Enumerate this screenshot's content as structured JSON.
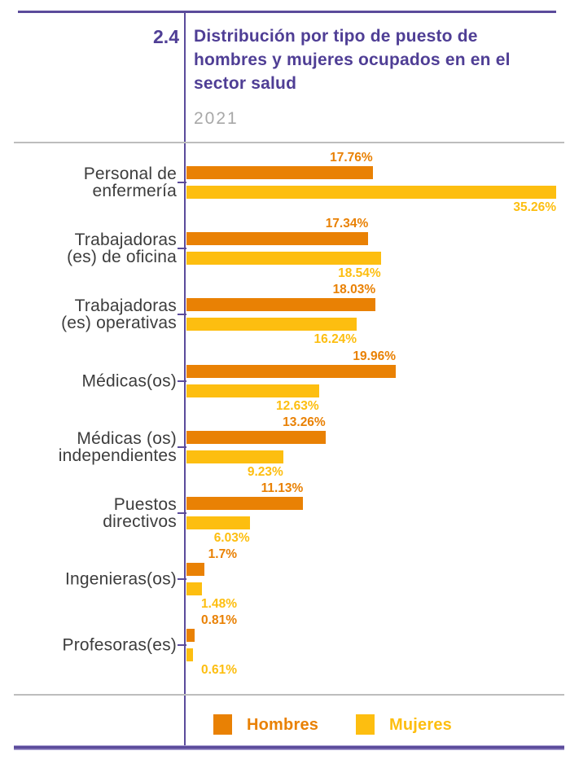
{
  "header": {
    "chapter_number": "2.4",
    "title_lines": [
      "Distribución por tipo de puesto de",
      "hombres y mujeres ocupados en en el",
      "sector salud"
    ],
    "year": "2021"
  },
  "colors": {
    "accent_purple": "#4f3e95",
    "rule_purple": "#5b4b9b",
    "rule_gray": "#bdbdbd",
    "year_gray": "#a8a8a8",
    "category_text": "#3d3d3d",
    "hombres_orange": "#e98104",
    "mujeres_yellow": "#fdbe10"
  },
  "legend": {
    "items": [
      {
        "label": "Hombres",
        "color": "#e98104"
      },
      {
        "label": "Mujeres",
        "color": "#fdbe10"
      }
    ]
  },
  "chart_data": {
    "type": "bar",
    "orientation": "horizontal",
    "title": "Distribución por tipo de puesto de hombres y mujeres ocupados en en el sector salud",
    "subtitle_year": "2021",
    "categories": [
      "Personal de enfermería",
      "Trabajadoras (es) de oficina",
      "Trabajadoras (es) operativas",
      "Médicas(os)",
      "Médicas (os) independientes",
      "Puestos directivos",
      "Ingenieras(os)",
      "Profesoras(es)"
    ],
    "category_display_lines": [
      [
        "Personal de",
        "enfermería"
      ],
      [
        "Trabajadoras",
        "(es) de oficina"
      ],
      [
        "Trabajadoras",
        "(es) operativas"
      ],
      [
        "Médicas(os)"
      ],
      [
        "Médicas (os)",
        "independientes"
      ],
      [
        "Puestos",
        "directivos"
      ],
      [
        "Ingenieras(os)"
      ],
      [
        "Profesoras(es)"
      ]
    ],
    "series": [
      {
        "name": "Hombres",
        "color": "#e98104",
        "values": [
          17.76,
          17.34,
          18.03,
          19.96,
          13.26,
          11.13,
          1.7,
          0.81
        ],
        "labels": [
          "17.76%",
          "17.34%",
          "18.03%",
          "19.96%",
          "13.26%",
          "11.13%",
          "1.7%",
          "0.81%"
        ]
      },
      {
        "name": "Mujeres",
        "color": "#fdbe10",
        "values": [
          35.26,
          18.54,
          16.24,
          12.63,
          9.23,
          6.03,
          1.48,
          0.61
        ],
        "labels": [
          "35.26%",
          "18.54%",
          "16.24%",
          "12.63%",
          "9.23%",
          "6.03%",
          "1.48%",
          "0.61%"
        ]
      }
    ],
    "xlim": [
      0,
      35.26
    ],
    "value_labels": "outside-end",
    "legend_position": "bottom",
    "grid": false
  }
}
